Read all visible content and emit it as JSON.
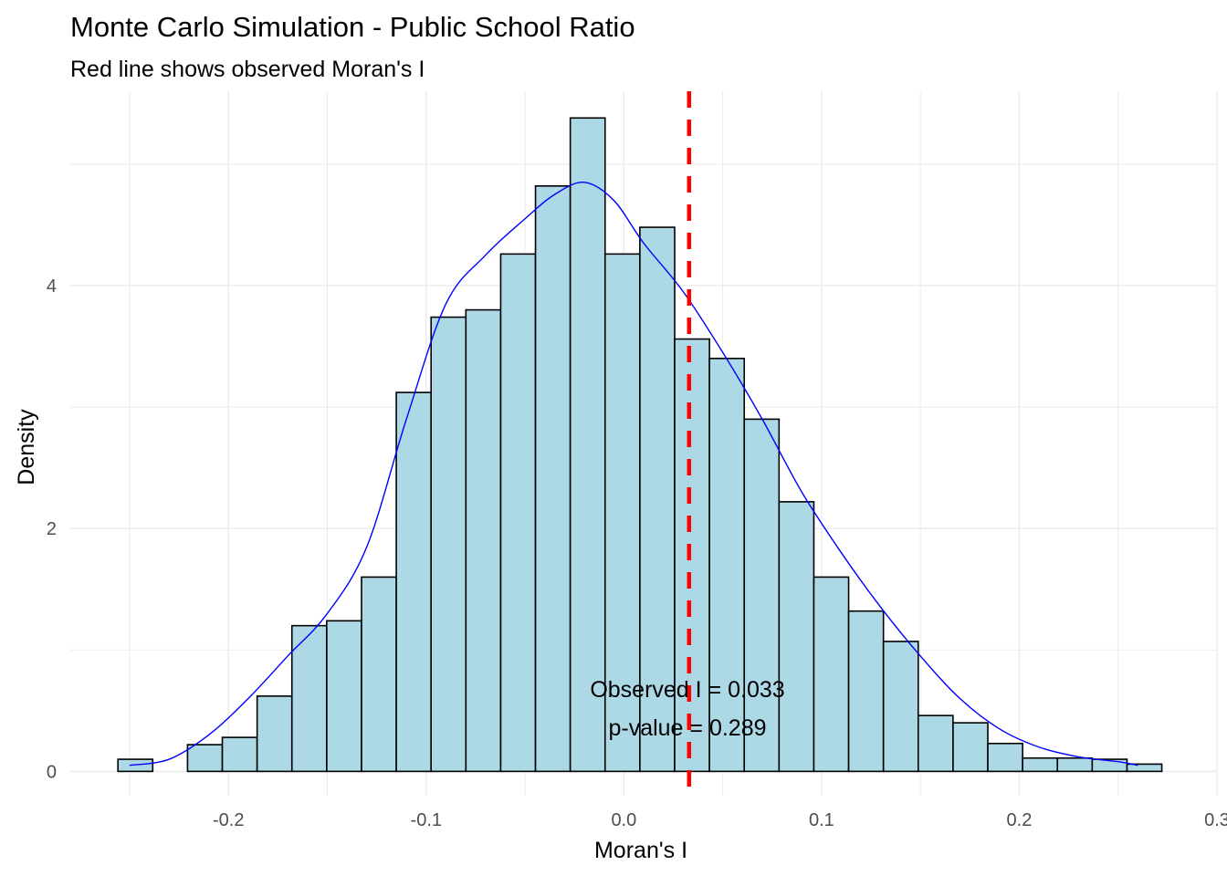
{
  "chart_data": {
    "type": "bar",
    "title": "Monte Carlo Simulation - Public School Ratio",
    "subtitle": "Red line shows observed Moran's I",
    "xlabel": "Moran's I",
    "ylabel": "Density",
    "xlim": [
      -0.28,
      0.3
    ],
    "ylim": [
      -0.2,
      5.6
    ],
    "x_ticks": [
      -0.2,
      -0.1,
      0.0,
      0.1,
      0.2,
      0.3
    ],
    "x_tick_labels": [
      "-0.2",
      "-0.1",
      "0.0",
      "0.1",
      "0.2",
      "0.3"
    ],
    "y_ticks": [
      0,
      2,
      4
    ],
    "y_tick_labels": [
      "0",
      "2",
      "4"
    ],
    "grid": true,
    "bin_width": 0.0176,
    "bin_starts": [
      -0.2559,
      -0.2383,
      -0.2207,
      -0.2031,
      -0.1855,
      -0.1679,
      -0.1503,
      -0.1327,
      -0.1151,
      -0.0975,
      -0.0799,
      -0.0623,
      -0.0447,
      -0.0271,
      -0.0095,
      0.0081,
      0.0257,
      0.0433,
      0.0609,
      0.0785,
      0.0961,
      0.1137,
      0.1313,
      0.1489,
      0.1665,
      0.1841,
      0.2017,
      0.2193,
      0.2369,
      0.2545
    ],
    "densities": [
      0.1,
      0.0,
      0.22,
      0.28,
      0.62,
      1.2,
      1.24,
      1.6,
      3.12,
      3.74,
      3.8,
      4.26,
      4.82,
      5.38,
      4.26,
      4.48,
      3.56,
      3.4,
      2.9,
      2.22,
      1.6,
      1.32,
      1.07,
      0.46,
      0.4,
      0.23,
      0.11,
      0.11,
      0.1,
      0.06
    ],
    "density_curve": {
      "x": [
        -0.25,
        -0.23,
        -0.21,
        -0.19,
        -0.17,
        -0.15,
        -0.13,
        -0.11,
        -0.09,
        -0.07,
        -0.05,
        -0.035,
        -0.02,
        -0.005,
        0.01,
        0.03,
        0.05,
        0.07,
        0.09,
        0.11,
        0.13,
        0.15,
        0.17,
        0.19,
        0.21,
        0.23,
        0.25,
        0.26
      ],
      "y": [
        0.05,
        0.1,
        0.3,
        0.6,
        0.95,
        1.3,
        1.85,
        2.9,
        3.85,
        4.25,
        4.55,
        4.75,
        4.85,
        4.7,
        4.35,
        3.95,
        3.45,
        2.9,
        2.3,
        1.8,
        1.35,
        0.95,
        0.6,
        0.35,
        0.2,
        0.12,
        0.08,
        0.05
      ],
      "color": "#0000ff"
    },
    "observed_I": 0.033,
    "colors": {
      "bar_fill": "#add8e6",
      "bar_stroke": "#000000",
      "observed_line": "#ff0000",
      "grid": "#ebebeb"
    },
    "annotations": [
      "Observed I = 0.033",
      "p-value = 0.289"
    ]
  }
}
